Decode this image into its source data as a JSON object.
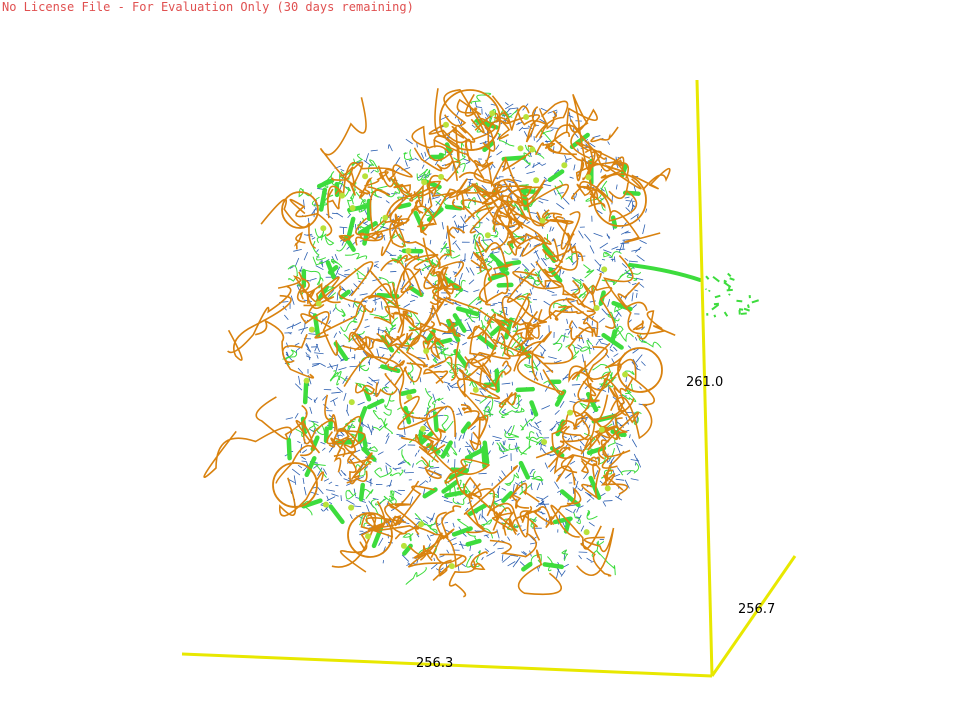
{
  "window": {
    "license_notice": "No License File - For Evaluation Only (30 days remaining)"
  },
  "viewer": {
    "background_color": "#ffffff",
    "axis_color": "#e8e800",
    "rna_color": "#d9820f",
    "base_color": "#2c5fb0",
    "protein_color": "#3ddc3d",
    "ion_color": "#b8e23a",
    "axes": {
      "x_label": "256.3",
      "y_label": "261.0",
      "z_label": "256.7"
    }
  }
}
